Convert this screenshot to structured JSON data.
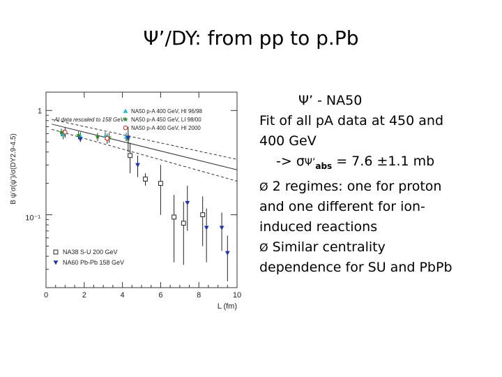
{
  "slide": {
    "title": "Ψ’/DY: from pp to p.Pb"
  },
  "text": {
    "line1": "Ψ’ -  NA50",
    "line2": "Fit of all pA data at 450 and",
    "line3": "400 GeV",
    "sigma_prefix": "-> σ",
    "sigma_psi": "Ψ’",
    "sigma_sub": "abs",
    "sigma_value": " = 7.6 ±1.1 mb",
    "bullet_symbol": "Ø",
    "bullet1_a": " 2 regimes: one for proton",
    "bullet1_b": "and one different for ion-",
    "bullet1_c": "induced reactions",
    "bullet2_a": " Similar centrality",
    "bullet2_b": "dependence for SU and PbPb"
  },
  "chart_data": {
    "type": "scatter",
    "xlabel": "L (fm)",
    "ylabel": "B ψ’σ(ψ’)/σ(DY2.9-4.5)",
    "xlim": [
      0,
      10
    ],
    "ylim": [
      0.02,
      1.5
    ],
    "log_y": true,
    "x_ticks": [
      "0",
      "2",
      "4",
      "6",
      "8",
      "10"
    ],
    "y_tick_labels": [
      "1",
      "10⁻¹"
    ],
    "annotation": "Al data rescaled to 158 GeV",
    "legend_top": [
      {
        "name": "NA50 p-A 400 GeV, HI 96/98",
        "color": "#22bbcc",
        "marker": "triangle-up"
      },
      {
        "name": "NA50 p-A 450 GeV, LI 98/00",
        "color": "#228822",
        "marker": "star"
      },
      {
        "name": "NA50 p-A 400 GeV, HI 2000",
        "color": "#dd2222",
        "marker": "circle-open"
      }
    ],
    "legend_bottom": [
      {
        "name": "NA38 S-U 200 GeV",
        "color": "#222222",
        "marker": "square-open"
      },
      {
        "name": "NA60 Pb-Pb 158 GeV",
        "color": "#2233aa",
        "marker": "triangle-down"
      }
    ],
    "fit_lines": [
      {
        "name": "fit",
        "style": "solid",
        "x": [
          0.3,
          10
        ],
        "y": [
          0.74,
          0.27
        ]
      },
      {
        "name": "fit-upper",
        "style": "dashed",
        "x": [
          0.3,
          10
        ],
        "y": [
          0.82,
          0.34
        ]
      },
      {
        "name": "fit-lower",
        "style": "dashed",
        "x": [
          0.3,
          10
        ],
        "y": [
          0.66,
          0.21
        ]
      }
    ],
    "series": [
      {
        "name": "NA50 p-A 400 GeV, HI 96/98",
        "points": [
          {
            "x": 0.9,
            "y": 0.59,
            "err": 0.06
          },
          {
            "x": 1.8,
            "y": 0.57,
            "err": 0.05
          },
          {
            "x": 3.1,
            "y": 0.57,
            "err": 0.05
          },
          {
            "x": 4.2,
            "y": 0.56,
            "err": 0.05
          }
        ]
      },
      {
        "name": "NA50 p-A 450 GeV, LI 98/00",
        "points": [
          {
            "x": 0.8,
            "y": 0.62,
            "err": 0.05
          },
          {
            "x": 1.7,
            "y": 0.58,
            "err": 0.05
          },
          {
            "x": 2.7,
            "y": 0.56,
            "err": 0.05
          },
          {
            "x": 3.3,
            "y": 0.55,
            "err": 0.06
          },
          {
            "x": 4.3,
            "y": 0.54,
            "err": 0.06
          }
        ]
      },
      {
        "name": "NA50 p-A 400 GeV, HI 2000",
        "points": [
          {
            "x": 1.0,
            "y": 0.62,
            "err": 0.07
          },
          {
            "x": 3.2,
            "y": 0.54,
            "err": 0.06
          }
        ]
      },
      {
        "name": "NA38 S-U 200 GeV",
        "points": [
          {
            "x": 4.4,
            "y": 0.37,
            "err": 0.12
          },
          {
            "x": 5.2,
            "y": 0.22,
            "err": 0.03
          },
          {
            "x": 6.0,
            "y": 0.2,
            "err": 0.1
          },
          {
            "x": 6.7,
            "y": 0.095,
            "err": 0.06
          },
          {
            "x": 7.2,
            "y": 0.083,
            "err": 0.05
          },
          {
            "x": 8.2,
            "y": 0.1,
            "err": 0.05
          }
        ]
      },
      {
        "name": "NA60 Pb-Pb 158 GeV",
        "points": [
          {
            "x": 1.8,
            "y": 0.53,
            "err": 0.03
          },
          {
            "x": 4.3,
            "y": 0.55,
            "err": 0.15
          },
          {
            "x": 4.8,
            "y": 0.3,
            "err": 0.07
          },
          {
            "x": 7.4,
            "y": 0.13,
            "err": 0.06
          },
          {
            "x": 8.4,
            "y": 0.075,
            "err": 0.04
          },
          {
            "x": 9.2,
            "y": 0.075,
            "err": 0.03
          },
          {
            "x": 9.5,
            "y": 0.043,
            "err": 0.02
          }
        ]
      }
    ]
  }
}
